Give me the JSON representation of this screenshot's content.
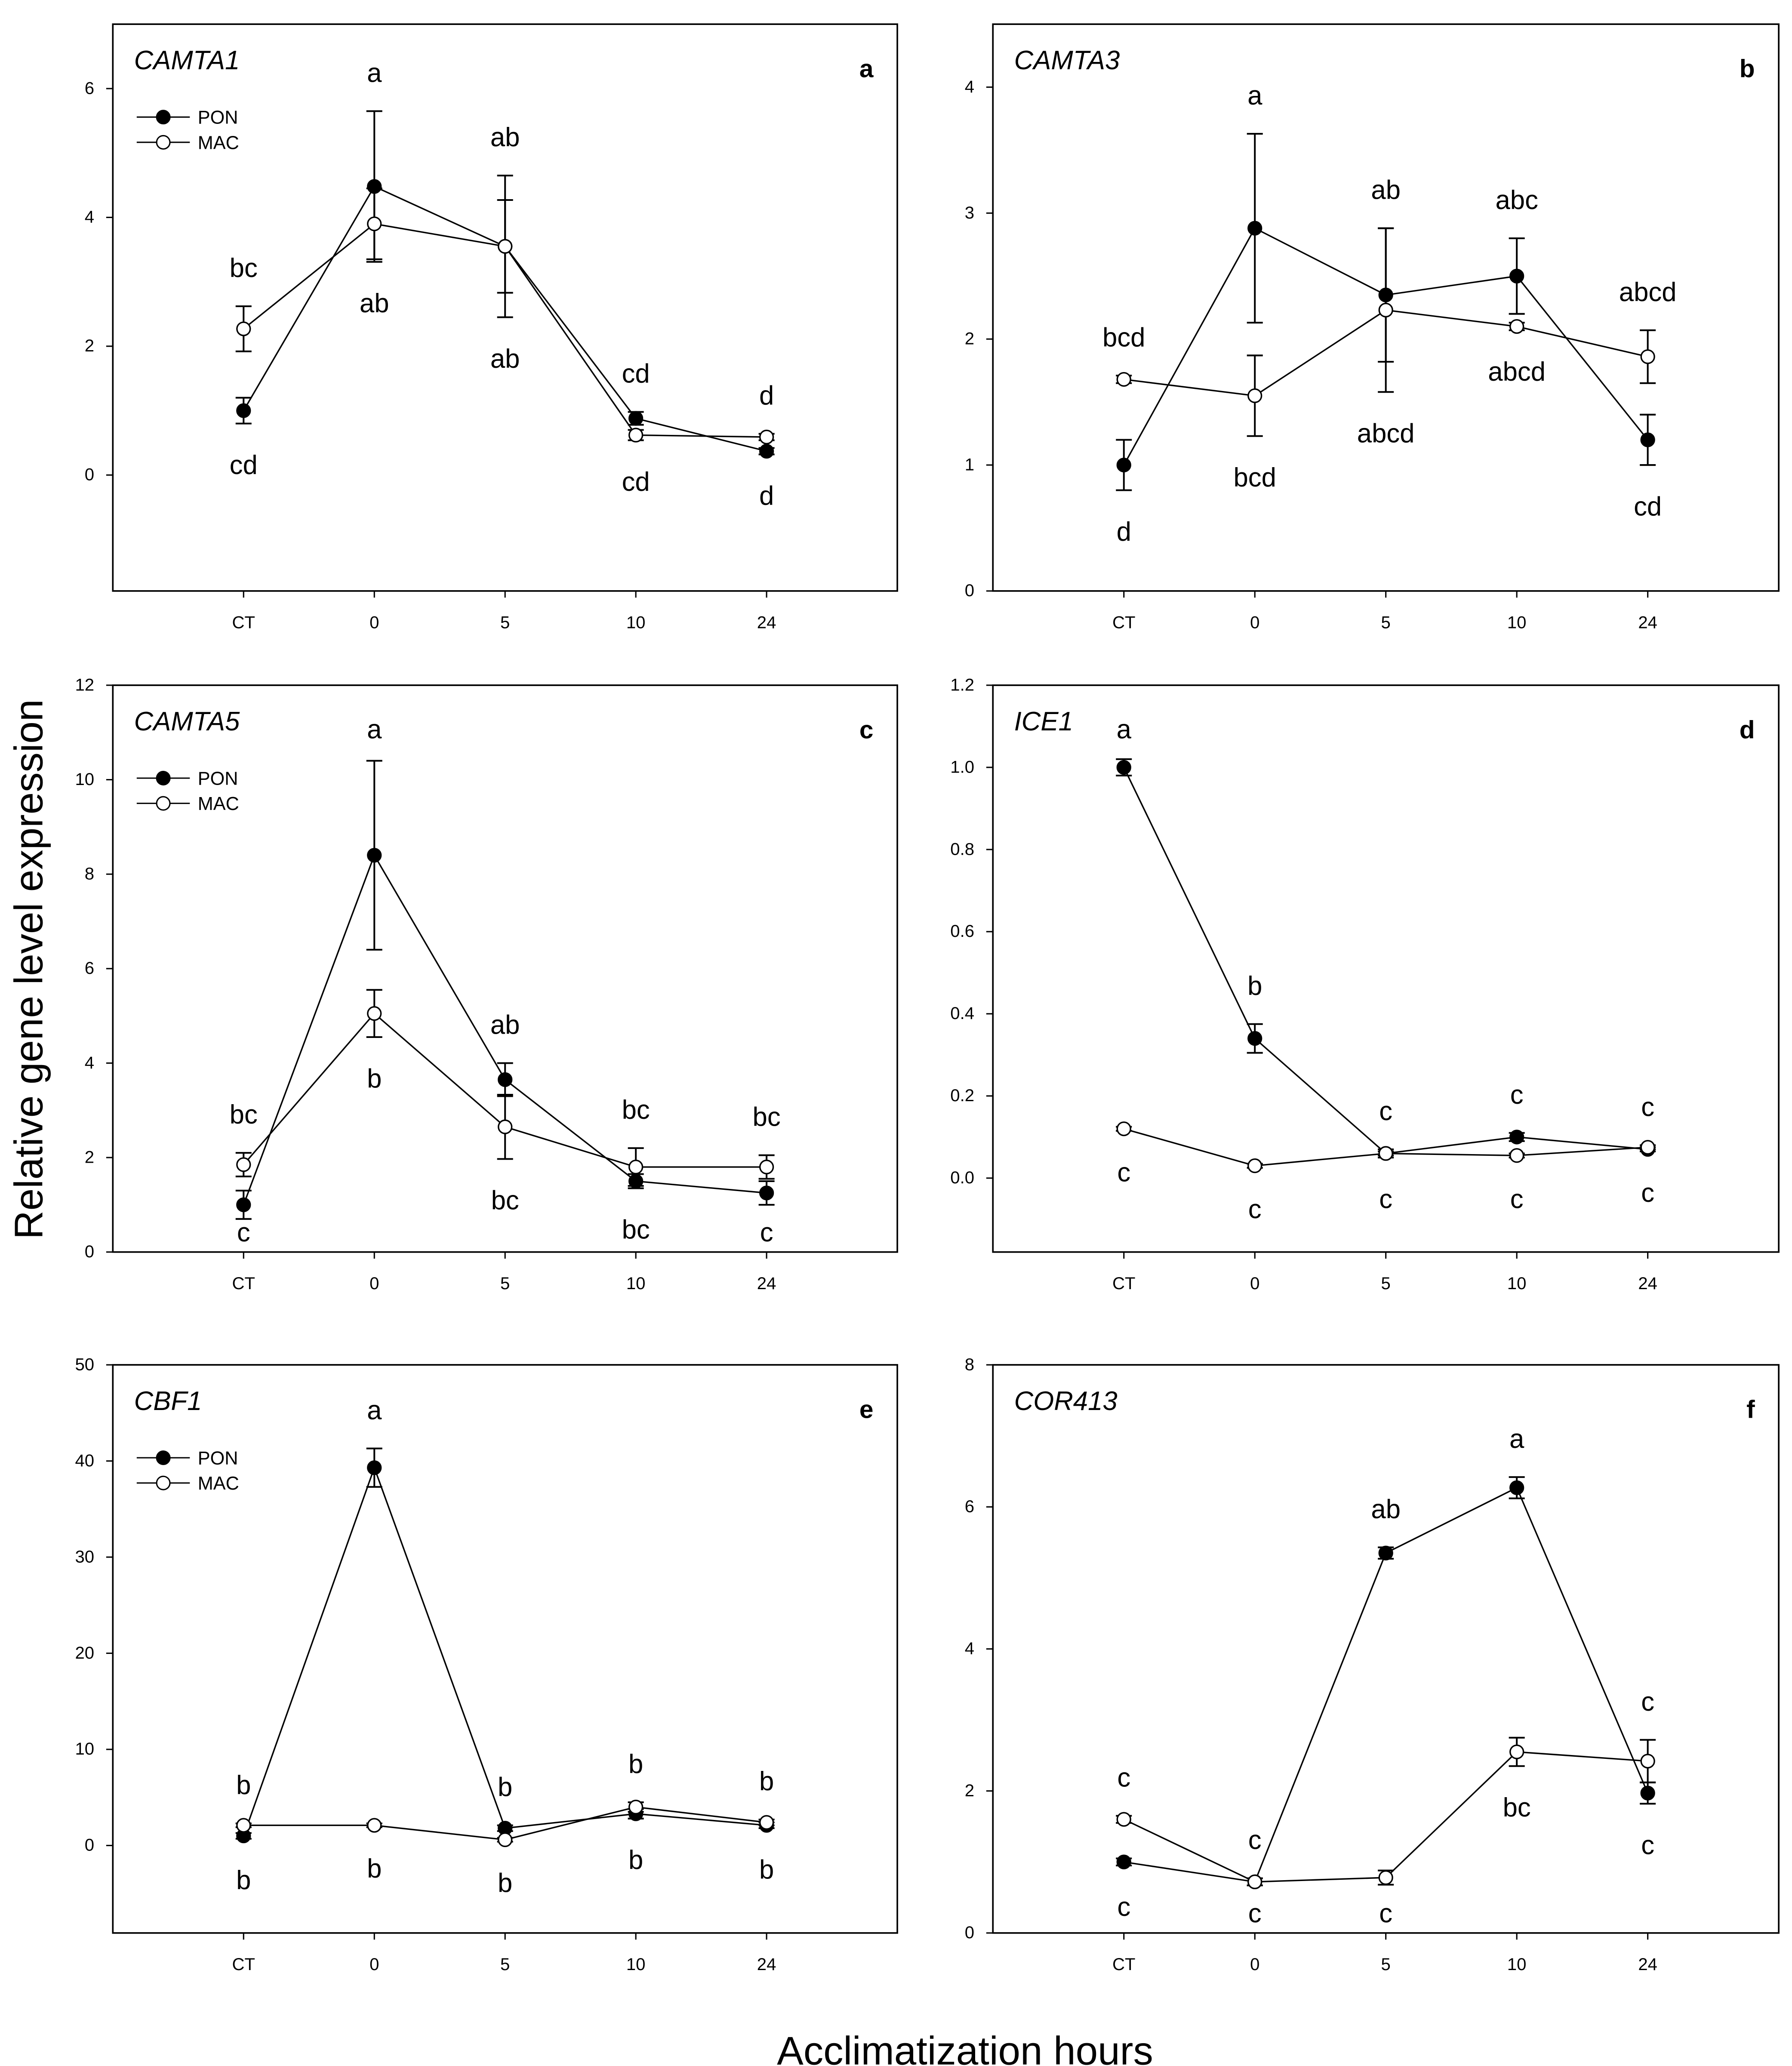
{
  "chart_data": {
    "type": "line",
    "ylabel": "Relative gene level expression",
    "xlabel": "Acclimatization hours",
    "categories": [
      "CT",
      "0",
      "5",
      "10",
      "24"
    ],
    "legend": {
      "placement": "top-left",
      "entries": [
        {
          "name": "PON",
          "marker": "filled-circle"
        },
        {
          "name": "MAC",
          "marker": "open-circle"
        }
      ]
    },
    "colors": {
      "line": "#000000",
      "pon_fill": "#000000",
      "mac_fill": "#ffffff"
    },
    "panels": [
      {
        "gene": "CAMTA1",
        "panel": "a",
        "ylim": [
          -1.8,
          7
        ],
        "yticks": [
          0,
          2,
          4,
          6
        ],
        "decimals": 0,
        "legend": true,
        "series": [
          {
            "name": "PON",
            "values": [
              1.0,
              4.48,
              3.55,
              0.88,
              0.37
            ],
            "errors": [
              0.2,
              1.17,
              1.1,
              0.1,
              0.05
            ]
          },
          {
            "name": "MAC",
            "values": [
              2.27,
              3.9,
              3.55,
              0.62,
              0.59
            ],
            "errors": [
              0.35,
              0.55,
              0.72,
              0.08,
              0.05
            ]
          }
        ],
        "letters_upper": [
          "bc",
          "a",
          "ab",
          "cd",
          "d"
        ],
        "letters_lower": [
          "cd",
          "ab",
          "ab",
          "cd",
          "d"
        ]
      },
      {
        "gene": "CAMTA3",
        "panel": "b",
        "ylim": [
          0,
          4.5
        ],
        "yticks": [
          0,
          1,
          2,
          3,
          4
        ],
        "decimals": 0,
        "legend": false,
        "series": [
          {
            "name": "PON",
            "values": [
              1.0,
              2.88,
              2.35,
              2.5,
              1.2
            ],
            "errors": [
              0.2,
              0.75,
              0.53,
              0.3,
              0.2
            ]
          },
          {
            "name": "MAC",
            "values": [
              1.68,
              1.55,
              2.23,
              2.1,
              1.86
            ],
            "errors": [
              0.03,
              0.32,
              0.65,
              0.03,
              0.21
            ]
          }
        ],
        "letters_upper": [
          "bcd",
          "a",
          "ab",
          "abc",
          "abcd"
        ],
        "letters_lower": [
          "d",
          "bcd",
          "abcd",
          "abcd",
          "cd"
        ]
      },
      {
        "gene": "CAMTA5",
        "panel": "c",
        "ylim": [
          0,
          12
        ],
        "yticks": [
          0,
          2,
          4,
          6,
          8,
          10,
          12
        ],
        "decimals": 0,
        "legend": true,
        "series": [
          {
            "name": "PON",
            "values": [
              1.0,
              8.4,
              3.65,
              1.5,
              1.25
            ],
            "errors": [
              0.3,
              2.0,
              0.35,
              0.15,
              0.25
            ]
          },
          {
            "name": "MAC",
            "values": [
              1.85,
              5.05,
              2.65,
              1.8,
              1.8
            ],
            "errors": [
              0.25,
              0.5,
              0.68,
              0.4,
              0.25
            ]
          }
        ],
        "letters_upper": [
          "bc",
          "a",
          "ab",
          "bc",
          "bc"
        ],
        "letters_lower": [
          "c",
          "b",
          "bc",
          "bc",
          "c"
        ]
      },
      {
        "gene": "ICE1",
        "panel": "d",
        "ylim": [
          -0.18,
          1.2
        ],
        "yticks": [
          0,
          0.2,
          0.4,
          0.6,
          0.8,
          1.0,
          1.2
        ],
        "decimals": 1,
        "legend": false,
        "series": [
          {
            "name": "PON",
            "values": [
              1.0,
              0.34,
              0.06,
              0.1,
              0.07
            ],
            "errors": [
              0.02,
              0.035,
              0.01,
              0.01,
              0.005
            ]
          },
          {
            "name": "MAC",
            "values": [
              0.12,
              0.03,
              0.06,
              0.055,
              0.075
            ],
            "errors": [
              0.005,
              0.005,
              0.005,
              0.005,
              0.005
            ]
          }
        ],
        "letters_upper": [
          "a",
          "b",
          "c",
          "c",
          "c"
        ],
        "letters_lower": [
          "c",
          "c",
          "c",
          "c",
          "c"
        ]
      },
      {
        "gene": "CBF1",
        "panel": "e",
        "ylim": [
          -9.1,
          50
        ],
        "yticks": [
          0,
          10,
          20,
          30,
          40,
          50
        ],
        "decimals": 0,
        "legend": true,
        "series": [
          {
            "name": "PON",
            "values": [
              1.0,
              39.3,
              1.8,
              3.3,
              2.1
            ],
            "errors": [
              0.3,
              2.0,
              0.3,
              0.5,
              0.3
            ]
          },
          {
            "name": "MAC",
            "values": [
              2.1,
              2.1,
              0.6,
              4.0,
              2.4
            ],
            "errors": [
              0.2,
              0.2,
              0.2,
              0.5,
              0.3
            ]
          }
        ],
        "letters_upper": [
          "b",
          "a",
          "b",
          "b",
          "b"
        ],
        "letters_lower": [
          "b",
          "b",
          "b",
          "b",
          "b"
        ]
      },
      {
        "gene": "COR413",
        "panel": "f",
        "ylim": [
          0,
          8
        ],
        "yticks": [
          0,
          2,
          4,
          6,
          8
        ],
        "decimals": 0,
        "legend": false,
        "series": [
          {
            "name": "PON",
            "values": [
              1.0,
              0.72,
              5.35,
              6.27,
              1.97
            ],
            "errors": [
              0.05,
              0.05,
              0.08,
              0.15,
              0.15
            ]
          },
          {
            "name": "MAC",
            "values": [
              1.6,
              0.72,
              0.78,
              2.55,
              2.42
            ],
            "errors": [
              0.05,
              0.05,
              0.1,
              0.2,
              0.3
            ]
          }
        ],
        "letters_upper": [
          "c",
          "c",
          "ab",
          "a",
          "c"
        ],
        "letters_lower": [
          "c",
          "c",
          "c",
          "bc",
          "c"
        ]
      }
    ]
  }
}
